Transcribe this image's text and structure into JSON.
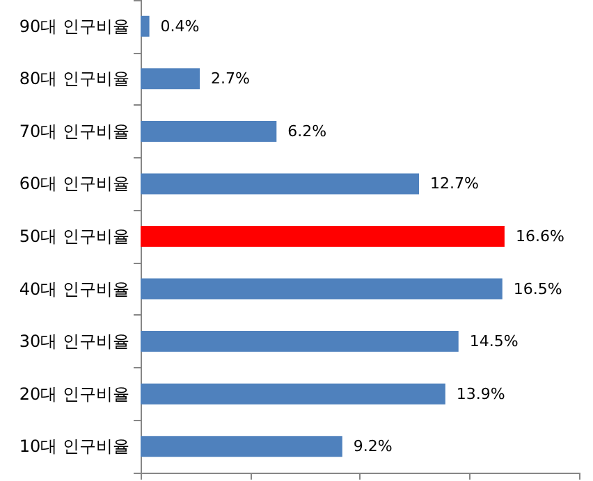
{
  "chart_data": {
    "type": "bar",
    "orientation": "horizontal",
    "categories": [
      "90대 인구비율",
      "80대 인구비율",
      "70대 인구비율",
      "60대 인구비율",
      "50대 인구비율",
      "40대 인구비율",
      "30대 인구비율",
      "20대 인구비율",
      "10대 인구비율"
    ],
    "values": [
      0.4,
      2.7,
      6.2,
      12.7,
      16.6,
      16.5,
      14.5,
      13.9,
      9.2
    ],
    "value_labels": [
      "0.4%",
      "2.7%",
      "6.2%",
      "12.7%",
      "16.6%",
      "16.5%",
      "14.5%",
      "13.9%",
      "9.2%"
    ],
    "colors": [
      "#4f81bd",
      "#4f81bd",
      "#4f81bd",
      "#4f81bd",
      "#ff0000",
      "#4f81bd",
      "#4f81bd",
      "#4f81bd",
      "#4f81bd"
    ],
    "xlim": [
      0,
      20
    ],
    "xticks": [
      {
        "value": 0,
        "label": null
      },
      {
        "value": 5,
        "label": null
      },
      {
        "value": 10,
        "label": null
      },
      {
        "value": 15,
        "label": null
      },
      {
        "value": 20,
        "label": null
      }
    ],
    "tick_labels": "y",
    "grid": false
  }
}
